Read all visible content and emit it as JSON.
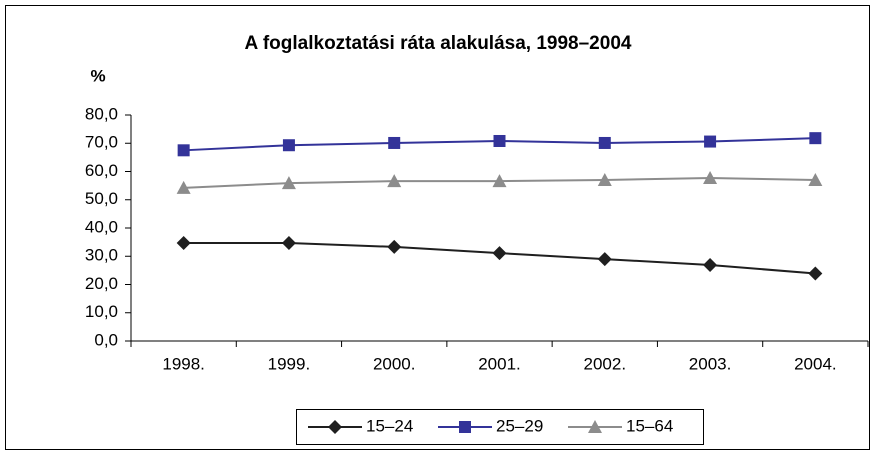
{
  "chart_data": {
    "type": "line",
    "title": "A foglalkoztatási ráta alakulása, 1998–2004",
    "y_label": "%",
    "categories": [
      "1998.",
      "1999.",
      "2000.",
      "2001.",
      "2002.",
      "2003.",
      "2004."
    ],
    "series": [
      {
        "name": "15–24",
        "color": "#1f1f1f",
        "marker": "diamond",
        "values": [
          34.7,
          34.7,
          33.3,
          31.1,
          29.0,
          26.9,
          23.9
        ]
      },
      {
        "name": "25–29",
        "color": "#333399",
        "marker": "square",
        "values": [
          67.5,
          69.3,
          70.1,
          70.8,
          70.1,
          70.6,
          71.8
        ]
      },
      {
        "name": "15–64",
        "color": "#8c8c8c",
        "marker": "triangle",
        "values": [
          54.2,
          55.9,
          56.6,
          56.6,
          57.0,
          57.7,
          57.0
        ]
      }
    ],
    "ylim": [
      0,
      80
    ],
    "yticks": [
      {
        "value": 0,
        "label": "0,0"
      },
      {
        "value": 10,
        "label": "10,0"
      },
      {
        "value": 20,
        "label": "20,0"
      },
      {
        "value": 30,
        "label": "30,0"
      },
      {
        "value": 40,
        "label": "40,0"
      },
      {
        "value": 50,
        "label": "50,0"
      },
      {
        "value": 60,
        "label": "60,0"
      },
      {
        "value": 70,
        "label": "70,0"
      },
      {
        "value": 80,
        "label": "80,0"
      }
    ],
    "grid": false,
    "legend": "bottom"
  }
}
